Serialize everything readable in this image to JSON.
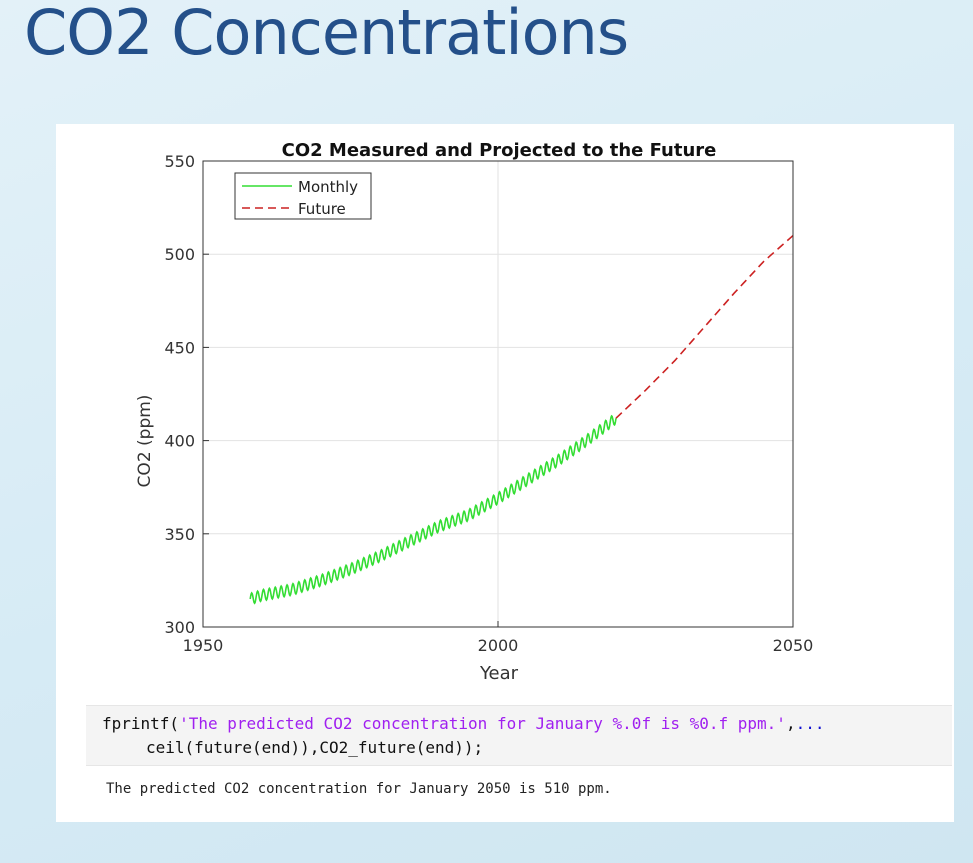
{
  "slide": {
    "title": "CO2 Concentrations"
  },
  "chart_data": {
    "type": "line",
    "title": "CO2 Measured and Projected to the Future",
    "xlabel": "Year",
    "ylabel": "CO2 (ppm)",
    "xlim": [
      1950,
      2050
    ],
    "ylim": [
      300,
      550
    ],
    "xticks": [
      1950,
      2000,
      2050
    ],
    "yticks": [
      300,
      350,
      400,
      450,
      500,
      550
    ],
    "grid": true,
    "legend": "top-left",
    "series": [
      {
        "name": "Monthly",
        "style": "solid",
        "color": "#33dd33",
        "seasonal_amplitude": 3,
        "x": [
          1958,
          1960,
          1965,
          1970,
          1975,
          1980,
          1985,
          1990,
          1995,
          2000,
          2005,
          2010,
          2015,
          2020
        ],
        "y": [
          315,
          317,
          320,
          325,
          331,
          338,
          346,
          354,
          360,
          369,
          379,
          389,
          400,
          412
        ]
      },
      {
        "name": "Future",
        "style": "dashed",
        "color": "#cc2222",
        "x": [
          2020,
          2025,
          2030,
          2035,
          2040,
          2045,
          2050
        ],
        "y": [
          412,
          427,
          443,
          461,
          479,
          496,
          510
        ]
      }
    ]
  },
  "code": {
    "line1_func": "fprintf(",
    "line1_string": "'The predicted CO2 concentration for January %.0f is %0.f ppm.'",
    "line1_sep": ",",
    "line1_dots": "...",
    "line2": "ceil(future(end)),CO2_future(end));"
  },
  "output": {
    "text": "The predicted CO2 concentration for January 2050 is 510 ppm."
  }
}
